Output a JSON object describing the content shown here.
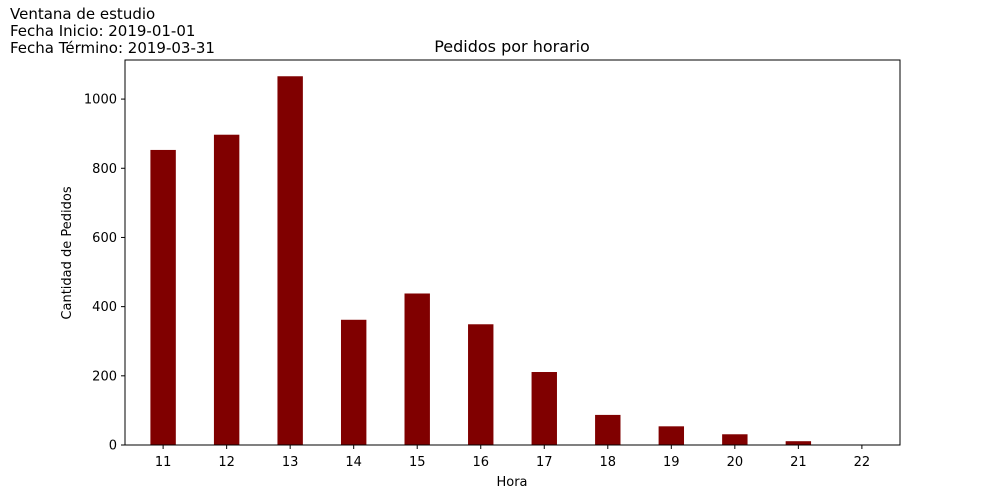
{
  "header": {
    "lines": [
      "Ventana de estudio",
      "Fecha Inicio: 2019-01-01",
      "Fecha Término: 2019-03-31"
    ]
  },
  "chart_data": {
    "type": "bar",
    "title": "Pedidos por horario",
    "xlabel": "Hora",
    "ylabel": "Cantidad de Pedidos",
    "categories": [
      "11",
      "12",
      "13",
      "14",
      "15",
      "16",
      "17",
      "18",
      "19",
      "20",
      "21",
      "22"
    ],
    "values": [
      853,
      897,
      1066,
      362,
      438,
      349,
      211,
      87,
      54,
      31,
      11,
      0
    ],
    "ylim": [
      0,
      1113
    ],
    "yticks": [
      0,
      200,
      400,
      600,
      800,
      1000
    ],
    "bar_color": "#800000",
    "grid": false,
    "legend": "none"
  }
}
